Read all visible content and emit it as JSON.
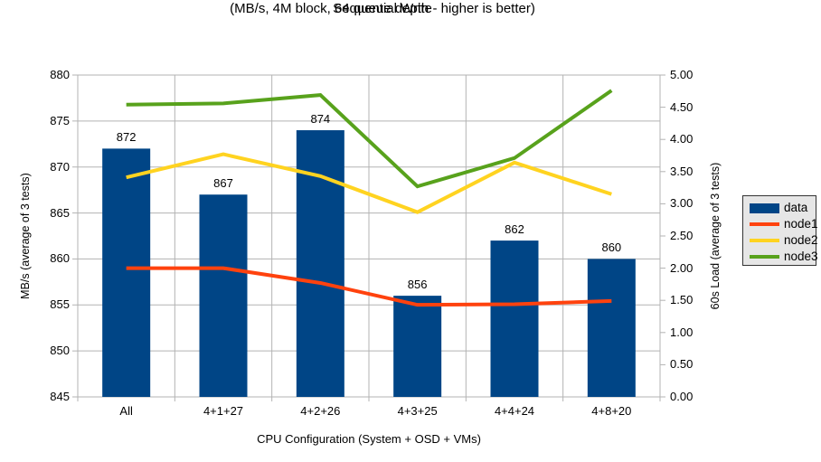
{
  "chart_data": {
    "type": "bar",
    "title": "Sequential Write",
    "subtitle": "(MB/s, 4M block, 64 queue depth - higher is better)",
    "xlabel": "CPU Configuration (System + OSD + VMs)",
    "ylabel_left": "MB/s (average of 3 tests)",
    "ylabel_right": "60s Load (average of 3 tests)",
    "categories": [
      "All",
      "4+1+27",
      "4+2+26",
      "4+3+25",
      "4+4+24",
      "4+8+20"
    ],
    "series": [
      {
        "name": "data",
        "type": "bar",
        "axis": "left",
        "color": "#004586",
        "values": [
          872,
          867,
          874,
          856,
          862,
          860
        ],
        "labels_shown": true
      },
      {
        "name": "node1",
        "type": "line",
        "axis": "right",
        "color": "#FF420E",
        "values": [
          2.0,
          2.0,
          1.77,
          1.43,
          1.44,
          1.49
        ]
      },
      {
        "name": "node2",
        "type": "line",
        "axis": "right",
        "color": "#FFD320",
        "values": [
          3.41,
          3.77,
          3.43,
          2.87,
          3.64,
          3.15
        ]
      },
      {
        "name": "node3",
        "type": "line",
        "axis": "right",
        "color": "#58A21C",
        "values": [
          4.54,
          4.56,
          4.69,
          3.27,
          3.71,
          4.76
        ]
      }
    ],
    "ylim_left": [
      845,
      880
    ],
    "ylim_right": [
      0.0,
      5.0
    ],
    "left_tick_labels": [
      "845",
      "850",
      "855",
      "860",
      "865",
      "870",
      "875",
      "880"
    ],
    "right_tick_labels": [
      "0.00",
      "0.50",
      "1.00",
      "1.50",
      "2.00",
      "2.50",
      "3.00",
      "3.50",
      "4.00",
      "4.50",
      "5.00"
    ],
    "grid": true,
    "legend_position": "right",
    "colors": {
      "grid": "#B3B3B3",
      "axis": "#B3B3B3",
      "text": "#000000",
      "legend_bg": "#E6E6E6",
      "legend_border": "#333333",
      "background": "#FFFFFF"
    }
  }
}
